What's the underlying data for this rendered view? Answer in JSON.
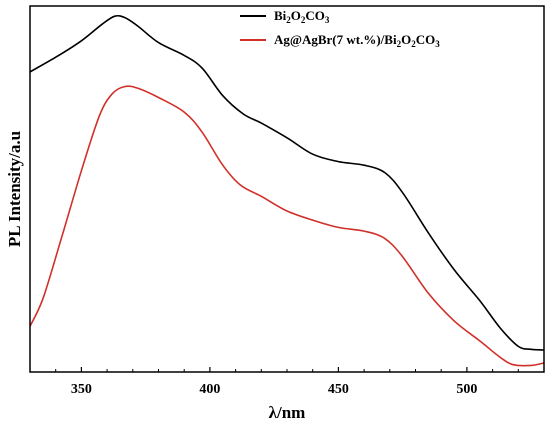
{
  "chart_data": {
    "type": "line",
    "xlabel": "λ/nm",
    "ylabel": "PL Intensity/a.u",
    "xlim": [
      330,
      530
    ],
    "ylim": [
      0,
      1
    ],
    "x_ticks": [
      350,
      400,
      450,
      500
    ],
    "x_tick_labels": [
      "350",
      "400",
      "450",
      "500"
    ],
    "y_tick_labels_shown": false,
    "grid": false,
    "legend_position": "top-right",
    "series": [
      {
        "name": "Bi2O2CO3",
        "legend_parts": [
          [
            "Bi",
            ""
          ],
          [
            "2",
            "sub"
          ],
          [
            "O",
            ""
          ],
          [
            "2",
            "sub"
          ],
          [
            "CO",
            ""
          ],
          [
            "3",
            "sub"
          ]
        ],
        "color": "#000000",
        "points": [
          [
            330,
            0.82
          ],
          [
            340,
            0.86
          ],
          [
            350,
            0.905
          ],
          [
            358,
            0.95
          ],
          [
            363,
            0.972
          ],
          [
            367,
            0.968
          ],
          [
            372,
            0.945
          ],
          [
            380,
            0.9
          ],
          [
            390,
            0.865
          ],
          [
            397,
            0.83
          ],
          [
            405,
            0.755
          ],
          [
            413,
            0.705
          ],
          [
            420,
            0.68
          ],
          [
            430,
            0.64
          ],
          [
            440,
            0.595
          ],
          [
            450,
            0.575
          ],
          [
            460,
            0.565
          ],
          [
            468,
            0.545
          ],
          [
            475,
            0.49
          ],
          [
            485,
            0.38
          ],
          [
            495,
            0.28
          ],
          [
            505,
            0.195
          ],
          [
            513,
            0.12
          ],
          [
            520,
            0.07
          ],
          [
            525,
            0.062
          ],
          [
            530,
            0.06
          ]
        ]
      },
      {
        "name": "Ag@AgBr(7 wt.%)/Bi2O2CO3",
        "legend_parts": [
          [
            "Ag@AgBr(7 wt.%)/Bi",
            ""
          ],
          [
            "2",
            "sub"
          ],
          [
            "O",
            ""
          ],
          [
            "2",
            "sub"
          ],
          [
            "CO",
            ""
          ],
          [
            "3",
            "sub"
          ]
        ],
        "color": "#d03028",
        "points": [
          [
            330,
            0.125
          ],
          [
            335,
            0.2
          ],
          [
            342,
            0.36
          ],
          [
            350,
            0.55
          ],
          [
            357,
            0.7
          ],
          [
            362,
            0.76
          ],
          [
            367,
            0.78
          ],
          [
            372,
            0.775
          ],
          [
            380,
            0.75
          ],
          [
            390,
            0.71
          ],
          [
            397,
            0.655
          ],
          [
            405,
            0.565
          ],
          [
            412,
            0.51
          ],
          [
            420,
            0.48
          ],
          [
            430,
            0.44
          ],
          [
            440,
            0.415
          ],
          [
            450,
            0.395
          ],
          [
            460,
            0.385
          ],
          [
            468,
            0.365
          ],
          [
            475,
            0.315
          ],
          [
            485,
            0.215
          ],
          [
            495,
            0.14
          ],
          [
            505,
            0.085
          ],
          [
            513,
            0.04
          ],
          [
            518,
            0.02
          ],
          [
            525,
            0.018
          ],
          [
            530,
            0.025
          ]
        ]
      }
    ]
  }
}
